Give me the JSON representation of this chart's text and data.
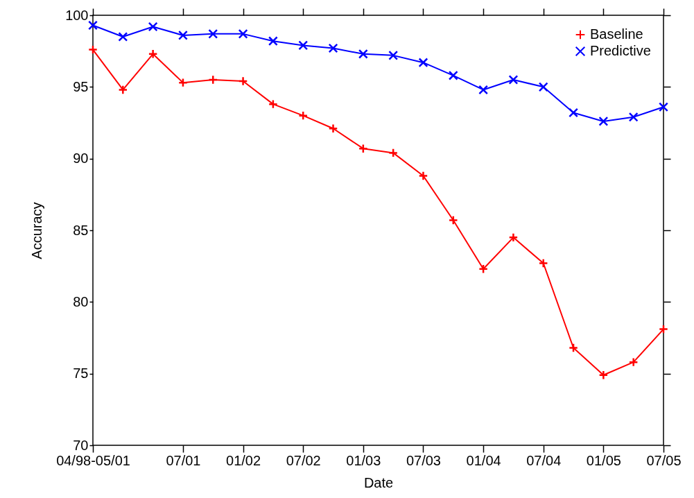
{
  "chart_data": {
    "type": "line",
    "xlabel": "Date",
    "ylabel": "Accuracy",
    "categories": [
      "04/98-05/01",
      null,
      null,
      "07/01",
      null,
      "01/02",
      null,
      "07/02",
      null,
      "01/03",
      null,
      "07/03",
      null,
      "01/04",
      null,
      "07/04",
      null,
      "01/05",
      null,
      "07/05"
    ],
    "series": [
      {
        "name": "Baseline",
        "color": "#ff0000",
        "marker": "cross",
        "values": [
          97.6,
          94.8,
          97.3,
          95.3,
          95.5,
          95.4,
          93.8,
          93.0,
          92.1,
          90.7,
          90.4,
          88.8,
          85.7,
          82.3,
          84.5,
          82.7,
          76.8,
          74.9,
          75.8,
          78.1
        ]
      },
      {
        "name": "Predictive",
        "color": "#0000ff",
        "marker": "cross",
        "values": [
          99.3,
          98.5,
          99.2,
          98.6,
          98.7,
          98.7,
          98.2,
          97.9,
          97.7,
          97.3,
          97.2,
          96.7,
          95.8,
          94.8,
          95.5,
          95.0,
          93.2,
          92.6,
          92.9,
          93.6
        ]
      }
    ],
    "ylim": [
      70,
      100
    ],
    "yticks": [
      70,
      75,
      80,
      85,
      90,
      95,
      100
    ],
    "grid": false,
    "legend": "top right",
    "line_style": "solid"
  }
}
